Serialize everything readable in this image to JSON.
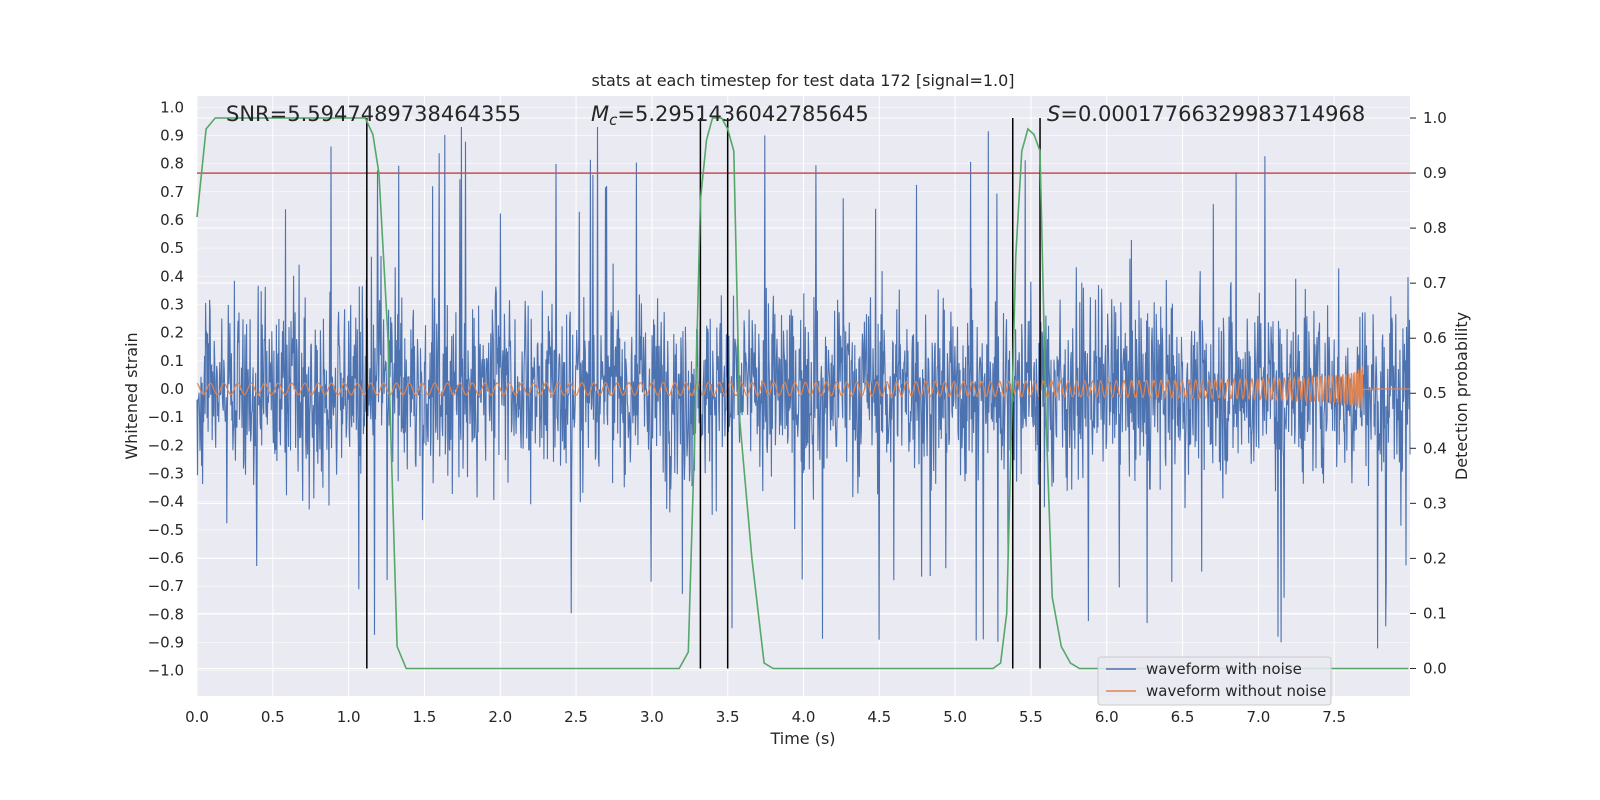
{
  "chart_data": {
    "type": "line",
    "title": "stats at each timestep for test data 172 [signal=1.0]",
    "xlabel": "Time (s)",
    "ylabel": "Whitened strain",
    "y2label": "Detection probability",
    "xlim": [
      0.0,
      8.0
    ],
    "ylim": [
      -1.09,
      1.04
    ],
    "y2lim": [
      -0.05,
      1.04
    ],
    "xticks": [
      "0.0",
      "0.5",
      "1.0",
      "1.5",
      "2.0",
      "2.5",
      "3.0",
      "3.5",
      "4.0",
      "4.5",
      "5.0",
      "5.5",
      "6.0",
      "6.5",
      "7.0",
      "7.5"
    ],
    "yticks": [
      "1.0",
      "0.9",
      "0.8",
      "0.7",
      "0.6",
      "0.5",
      "0.4",
      "0.3",
      "0.2",
      "0.1",
      "0.0",
      "−0.1",
      "−0.2",
      "−0.3",
      "−0.4",
      "−0.5",
      "−0.6",
      "−0.7",
      "−0.8",
      "−0.9",
      "−1.0"
    ],
    "y2ticks": [
      "1.0",
      "0.9",
      "0.8",
      "0.7",
      "0.6",
      "0.5",
      "0.4",
      "0.3",
      "0.2",
      "0.1",
      "0.0"
    ],
    "annotations": {
      "snr": "SNR=5.5947489738464355",
      "mc_symbol": "M",
      "mc_sub": "c",
      "mc_value": "=5.2951436042785645",
      "s_symbol": "S",
      "s_value": "=0.00017766329983714968"
    },
    "threshold": {
      "y2": 0.9,
      "color": "#c44e52"
    },
    "vertical_lines_x": [
      1.12,
      3.32,
      3.5,
      5.38,
      5.56
    ],
    "series": [
      {
        "name": "waveform with noise",
        "color": "#4c72b0",
        "description_values": {
          "typical_band": [
            -0.45,
            0.45
          ],
          "peaks_max": 0.93,
          "peaks_min": -1.0
        }
      },
      {
        "name": "waveform without noise",
        "color": "#dd8452",
        "chirp": {
          "start_amplitude": 0.02,
          "peak_amplitude": 0.16,
          "merger_time": 7.69,
          "end_time": 8.0
        }
      },
      {
        "name": "detection probability",
        "color": "#55a868",
        "axis": "y2",
        "x": [
          0.0,
          0.06,
          0.12,
          0.3,
          0.6,
          0.9,
          1.11,
          1.16,
          1.2,
          1.26,
          1.32,
          1.38,
          1.5,
          2.0,
          2.5,
          3.0,
          3.18,
          3.24,
          3.28,
          3.32,
          3.36,
          3.4,
          3.46,
          3.5,
          3.54,
          3.58,
          3.66,
          3.74,
          3.8,
          4.0,
          4.5,
          5.0,
          5.25,
          5.3,
          5.34,
          5.4,
          5.44,
          5.48,
          5.52,
          5.56,
          5.6,
          5.64,
          5.7,
          5.76,
          5.82,
          6.0,
          6.5,
          7.0,
          7.5,
          7.99
        ],
        "y": [
          0.82,
          0.98,
          1.0,
          1.0,
          1.0,
          1.0,
          1.0,
          0.97,
          0.9,
          0.6,
          0.04,
          0.0,
          0.0,
          0.0,
          0.0,
          0.0,
          0.0,
          0.03,
          0.4,
          0.85,
          0.96,
          1.0,
          1.0,
          0.98,
          0.94,
          0.45,
          0.2,
          0.01,
          0.0,
          0.0,
          0.0,
          0.0,
          0.0,
          0.01,
          0.1,
          0.75,
          0.94,
          0.98,
          0.97,
          0.94,
          0.45,
          0.13,
          0.04,
          0.01,
          0.0,
          0.0,
          0.0,
          0.0,
          0.0,
          0.0
        ]
      }
    ],
    "legend": {
      "placement": "lower-right",
      "entries": [
        "waveform with noise",
        "waveform without noise"
      ]
    },
    "grid": true,
    "background": "#eaeaf2"
  }
}
